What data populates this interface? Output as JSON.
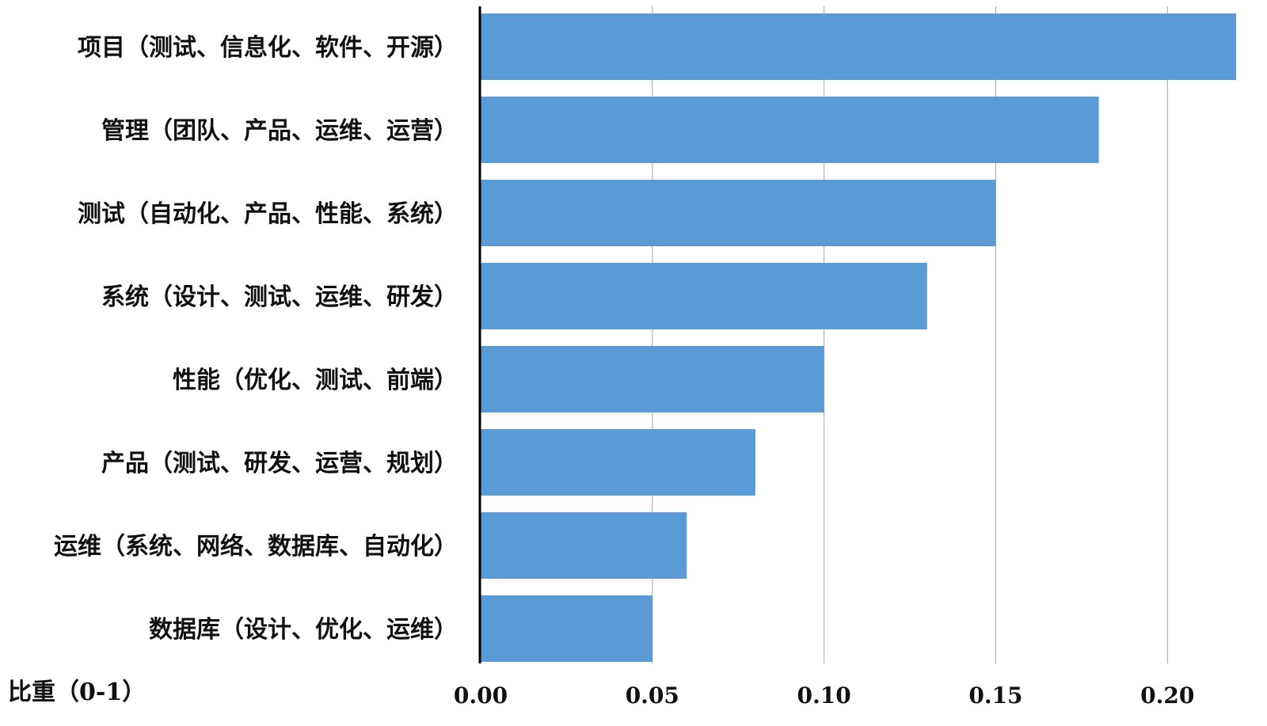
{
  "chart_data": {
    "type": "bar",
    "orientation": "horizontal",
    "categories": [
      "项目（测试、信息化、软件、开源）",
      "管理（团队、产品、运维、运营）",
      "测试（自动化、产品、性能、系统）",
      "系统（设计、测试、运维、研发）",
      "性能（优化、测试、前端）",
      "产品（测试、研发、运营、规划）",
      "运维（系统、网络、数据库、自动化）",
      "数据库（设计、优化、运维）"
    ],
    "values": [
      0.22,
      0.18,
      0.15,
      0.13,
      0.1,
      0.08,
      0.06,
      0.05
    ],
    "xlabel": "比重（0-1）",
    "ylabel": "",
    "xlim": [
      0,
      0.22
    ],
    "xticks": [
      "0.00",
      "0.05",
      "0.10",
      "0.15",
      "0.20"
    ],
    "grid": "vertical",
    "bar_color": "#5B9BD5",
    "grid_color": "#A6A6A6",
    "axis_color": "#000000"
  }
}
